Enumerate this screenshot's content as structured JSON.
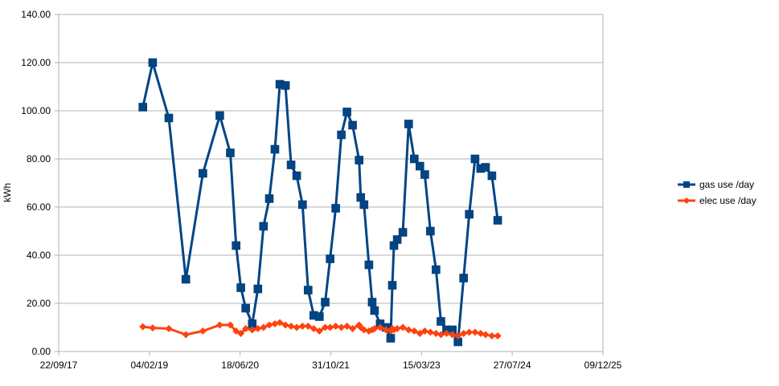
{
  "chart_data": {
    "type": "line",
    "title": "",
    "xlabel": "",
    "ylabel": "kWh",
    "ylim": [
      0,
      140
    ],
    "yticks": [
      "0.00",
      "20.00",
      "40.00",
      "60.00",
      "80.00",
      "100.00",
      "120.00",
      "140.00"
    ],
    "xlim": [
      "2017-09-22",
      "2025-12-09"
    ],
    "xticks": [
      "22/09/17",
      "04/02/19",
      "18/06/20",
      "31/10/21",
      "15/03/23",
      "27/07/24",
      "09/12/25"
    ],
    "grid": "horizontal",
    "legend": "right",
    "x": [
      "2018-12-30",
      "2019-02-22",
      "2019-05-22",
      "2019-08-24",
      "2019-11-26",
      "2020-02-27",
      "2020-04-25",
      "2020-05-27",
      "2020-06-22",
      "2020-07-19",
      "2020-08-24",
      "2020-09-24",
      "2020-10-25",
      "2020-11-26",
      "2020-12-27",
      "2021-01-23",
      "2021-02-23",
      "2021-03-26",
      "2021-04-26",
      "2021-05-28",
      "2021-06-28",
      "2021-07-29",
      "2021-08-29",
      "2021-09-30",
      "2021-10-27",
      "2021-11-27",
      "2021-12-28",
      "2022-01-28",
      "2022-02-28",
      "2022-04-05",
      "2022-04-14",
      "2022-05-02",
      "2022-05-29",
      "2022-06-16",
      "2022-06-29",
      "2022-07-30",
      "2022-08-31",
      "2022-09-26",
      "2022-10-05",
      "2022-10-14",
      "2022-11-01",
      "2022-12-02",
      "2023-01-03",
      "2023-02-03",
      "2023-03-06",
      "2023-04-02",
      "2023-05-03",
      "2023-06-03",
      "2023-06-30",
      "2023-07-31",
      "2023-09-01",
      "2023-10-02",
      "2023-11-02",
      "2023-12-03",
      "2024-01-04",
      "2024-02-04",
      "2024-03-02",
      "2024-04-06",
      "2024-05-08"
    ],
    "series": [
      {
        "name": "gas use /day",
        "color": "#004586",
        "marker": "square",
        "values": [
          101.5,
          120,
          97,
          30,
          74,
          98,
          82.5,
          44,
          26.5,
          18,
          11.5,
          26,
          52,
          63.5,
          84,
          111,
          110.5,
          77.5,
          73,
          61,
          25.5,
          15,
          14.5,
          20.5,
          38.5,
          59.5,
          90,
          99.5,
          94,
          79.5,
          64,
          61,
          36,
          20.5,
          17,
          11.5,
          10,
          5.5,
          27.5,
          44,
          46.5,
          49.5,
          94.5,
          80,
          77,
          73.5,
          50,
          34,
          12.5,
          9,
          9,
          4,
          30.5,
          57,
          80,
          76,
          76.5,
          73,
          54.5
        ]
      },
      {
        "name": "elec use /day",
        "color": "#ff420e",
        "marker": "diamond",
        "values": [
          10.3,
          9.8,
          9.5,
          7,
          8.5,
          11,
          11,
          8.5,
          7.5,
          9.5,
          9,
          9.5,
          10,
          11,
          11.5,
          12,
          11,
          10.5,
          10,
          10.5,
          10.5,
          9.5,
          8.5,
          10,
          10,
          10.5,
          10,
          10.5,
          9.5,
          11,
          10,
          9,
          8.5,
          9,
          9.5,
          10,
          9,
          8.5,
          9.5,
          9,
          9.5,
          10,
          9,
          8.5,
          7.5,
          8.5,
          8,
          7.5,
          7,
          7.5,
          7,
          6.5,
          7.5,
          8,
          8,
          7.5,
          7,
          6.5,
          6.5
        ]
      }
    ]
  }
}
